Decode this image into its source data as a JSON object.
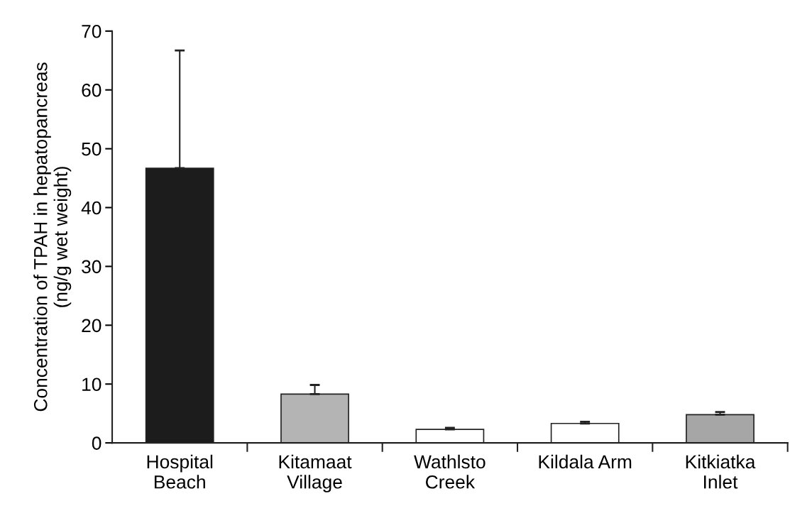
{
  "chart_data": {
    "type": "bar",
    "ylabel": "Concentration of TPAH in hepatopancreas\n(ng/g wet weight)",
    "categories": [
      "Hospital\nBeach",
      "Kitamaat\nVillage",
      "Wathlsto\nCreek",
      "Kildala Arm",
      "Kitkiatka\nInlet"
    ],
    "values": [
      46.7,
      8.3,
      2.3,
      3.3,
      4.8
    ],
    "errors": [
      [
        46.7,
        66.7
      ],
      [
        8.3,
        9.85
      ],
      [
        2.3,
        2.55
      ],
      [
        3.3,
        3.6
      ],
      [
        4.8,
        5.25
      ]
    ],
    "colors": [
      "#1c1c1c",
      "#b4b4b4",
      "#ffffff",
      "#ffffff",
      "#a6a6a6"
    ],
    "ylim": [
      0,
      70
    ],
    "yticks": [
      0,
      10,
      20,
      30,
      40,
      50,
      60,
      70
    ],
    "grid": false,
    "legend": false
  }
}
